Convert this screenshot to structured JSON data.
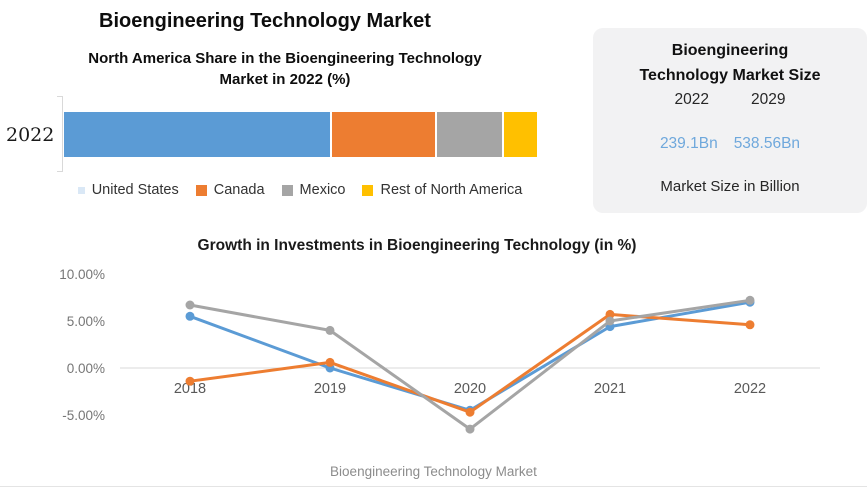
{
  "header": {
    "title": "Bioengineering Technology Market",
    "subtitle": "North America Share in the Bioengineering Technology Market in 2022 (%)"
  },
  "market_size_panel": {
    "title_line1": "Bioengineering",
    "title_line2": "Technology Market Size",
    "year_left": "2022",
    "year_right": "2029",
    "value_left": "239.1Bn",
    "value_right": "538.56Bn",
    "caption": "Market Size in Billion",
    "value_color": "#6FA8DC",
    "panel_bg": "#F2F2F3"
  },
  "footer": {
    "text": "Bioengineering Technology Market"
  },
  "colors": {
    "blue": "#5B9BD5",
    "orange": "#ED7D31",
    "gray": "#A5A5A5",
    "yellow": "#FFC000",
    "axis_line": "#D9D9D9"
  },
  "chart_data": [
    {
      "type": "bar",
      "subtype": "horizontal-stacked",
      "title": "North America Share in the Bioengineering Technology Market in 2022 (%)",
      "categories": [
        "2022"
      ],
      "series": [
        {
          "name": "United States",
          "values": [
            57
          ],
          "color": "#5B9BD5",
          "legend_color": "#AECBEA",
          "legend_marker": "small-faint-dot"
        },
        {
          "name": "Canada",
          "values": [
            22
          ],
          "color": "#ED7D31"
        },
        {
          "name": "Mexico",
          "values": [
            14
          ],
          "color": "#A5A5A5"
        },
        {
          "name": "Rest of North America",
          "values": [
            7
          ],
          "color": "#FFC000"
        }
      ],
      "legend_position": "bottom",
      "xlim": [
        0,
        100
      ]
    },
    {
      "type": "line",
      "title": "Growth in Investments in Bioengineering Technology (in %)",
      "x": [
        "2018",
        "2019",
        "2020",
        "2021",
        "2022"
      ],
      "series": [
        {
          "name": "blue",
          "color": "#5B9BD5",
          "values": [
            5.5,
            0.0,
            -4.5,
            4.4,
            7.0
          ]
        },
        {
          "name": "orange",
          "color": "#ED7D31",
          "values": [
            -1.4,
            0.6,
            -4.7,
            5.7,
            4.6
          ]
        },
        {
          "name": "gray",
          "color": "#A5A5A5",
          "values": [
            6.7,
            4.0,
            -6.5,
            5.0,
            7.2
          ]
        }
      ],
      "y_ticks": [
        {
          "label": "10.00%",
          "value": 10
        },
        {
          "label": "5.00%",
          "value": 5
        },
        {
          "label": "0.00%",
          "value": 0
        },
        {
          "label": "-5.00%",
          "value": -5
        }
      ],
      "ylim": [
        -8,
        11.5
      ],
      "legend": "none",
      "gridlines": "zero-axis-only"
    }
  ]
}
